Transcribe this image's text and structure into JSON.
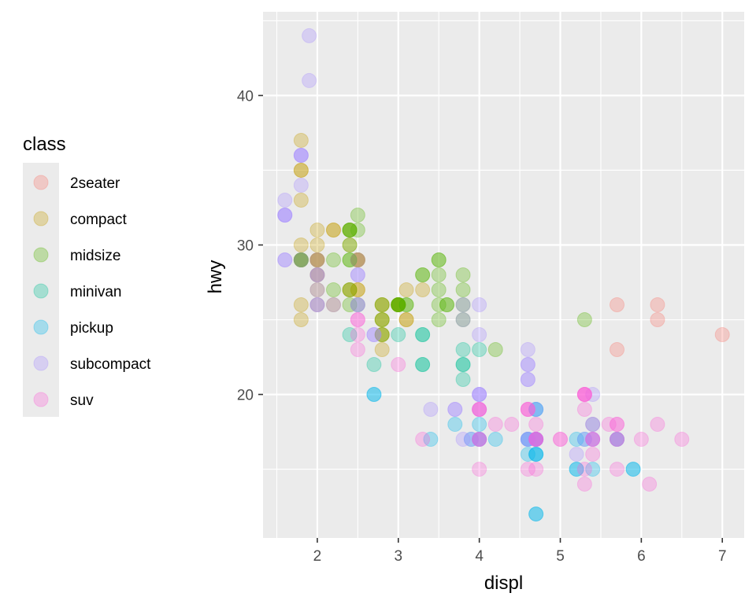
{
  "chart_data": {
    "type": "scatter",
    "xlabel": "displ",
    "ylabel": "hwy",
    "xlim": [
      1.33,
      7.27
    ],
    "ylim": [
      10.4,
      45.6
    ],
    "x_ticks": [
      2,
      3,
      4,
      5,
      6,
      7
    ],
    "y_ticks": [
      20,
      30,
      40
    ],
    "grid": true,
    "point_alpha": 0.3,
    "legend": {
      "title": "class",
      "position": "left"
    },
    "series": [
      {
        "name": "2seater",
        "color": "#F8766D",
        "points": [
          [
            5.7,
            26
          ],
          [
            5.7,
            23
          ],
          [
            6.2,
            26
          ],
          [
            6.2,
            25
          ],
          [
            7.0,
            24
          ]
        ]
      },
      {
        "name": "compact",
        "color": "#C49A00",
        "points": [
          [
            1.8,
            29
          ],
          [
            1.8,
            29
          ],
          [
            2.0,
            31
          ],
          [
            2.0,
            30
          ],
          [
            2.8,
            26
          ],
          [
            2.8,
            26
          ],
          [
            3.1,
            27
          ],
          [
            1.8,
            26
          ],
          [
            1.8,
            25
          ],
          [
            2.0,
            28
          ],
          [
            2.0,
            27
          ],
          [
            2.8,
            25
          ],
          [
            2.8,
            25
          ],
          [
            3.1,
            25
          ],
          [
            3.1,
            25
          ],
          [
            2.2,
            26
          ],
          [
            2.4,
            27
          ],
          [
            2.4,
            30
          ],
          [
            3.0,
            26
          ],
          [
            3.3,
            27
          ],
          [
            1.8,
            33
          ],
          [
            1.8,
            35
          ],
          [
            1.8,
            37
          ],
          [
            1.8,
            35
          ],
          [
            2.0,
            29
          ],
          [
            2.0,
            26
          ],
          [
            2.0,
            29
          ],
          [
            2.0,
            29
          ],
          [
            2.8,
            24
          ],
          [
            2.5,
            29
          ],
          [
            2.5,
            29
          ],
          [
            2.5,
            29
          ],
          [
            2.5,
            29
          ],
          [
            2.5,
            27
          ],
          [
            2.5,
            27
          ],
          [
            2.2,
            31
          ],
          [
            2.2,
            31
          ],
          [
            2.4,
            31
          ],
          [
            2.4,
            27
          ],
          [
            3.0,
            26
          ],
          [
            3.0,
            26
          ],
          [
            3.0,
            26
          ],
          [
            2.0,
            28
          ],
          [
            2.0,
            29
          ],
          [
            2.8,
            23
          ],
          [
            1.8,
            30
          ],
          [
            2.8,
            24
          ]
        ]
      },
      {
        "name": "midsize",
        "color": "#53B400",
        "points": [
          [
            1.8,
            29
          ],
          [
            1.8,
            29
          ],
          [
            2.4,
            26
          ],
          [
            3.1,
            26
          ],
          [
            2.4,
            29
          ],
          [
            2.4,
            31
          ],
          [
            2.5,
            32
          ],
          [
            2.5,
            31
          ],
          [
            3.3,
            28
          ],
          [
            3.3,
            28
          ],
          [
            2.8,
            26
          ],
          [
            3.5,
            28
          ],
          [
            3.5,
            26
          ],
          [
            3.8,
            26
          ],
          [
            3.8,
            25
          ],
          [
            3.8,
            27
          ],
          [
            3.8,
            28
          ],
          [
            3.6,
            26
          ],
          [
            3.5,
            29
          ],
          [
            3.5,
            27
          ],
          [
            3.6,
            26
          ],
          [
            3.0,
            26
          ],
          [
            2.4,
            30
          ],
          [
            2.4,
            31
          ],
          [
            2.4,
            29
          ],
          [
            2.4,
            27
          ],
          [
            2.2,
            27
          ],
          [
            2.5,
            26
          ],
          [
            3.0,
            26
          ],
          [
            3.0,
            26
          ],
          [
            3.5,
            29
          ],
          [
            3.5,
            25
          ],
          [
            3.0,
            26
          ],
          [
            2.4,
            31
          ],
          [
            5.3,
            25
          ],
          [
            2.8,
            24
          ],
          [
            2.2,
            29
          ],
          [
            2.8,
            25
          ],
          [
            1.8,
            29
          ],
          [
            3.1,
            26
          ],
          [
            4.2,
            23
          ]
        ]
      },
      {
        "name": "minivan",
        "color": "#00C094",
        "points": [
          [
            3.8,
            22
          ],
          [
            3.8,
            22
          ],
          [
            3.3,
            22
          ],
          [
            3.3,
            22
          ],
          [
            3.8,
            21
          ],
          [
            3.3,
            24
          ],
          [
            3.3,
            24
          ],
          [
            3.8,
            23
          ],
          [
            3.0,
            24
          ],
          [
            2.4,
            24
          ],
          [
            4.0,
            23
          ],
          [
            2.7,
            22
          ]
        ]
      },
      {
        "name": "pickup",
        "color": "#00B6EB",
        "points": [
          [
            2.7,
            20
          ],
          [
            2.7,
            20
          ],
          [
            3.7,
            18
          ],
          [
            3.9,
            17
          ],
          [
            4.7,
            16
          ],
          [
            4.7,
            16
          ],
          [
            5.2,
            15
          ],
          [
            5.2,
            15
          ],
          [
            5.7,
            17
          ],
          [
            5.9,
            15
          ],
          [
            4.2,
            17
          ],
          [
            4.6,
            17
          ],
          [
            5.4,
            15
          ],
          [
            4.7,
            17
          ],
          [
            4.6,
            16
          ],
          [
            4.7,
            16
          ],
          [
            5.4,
            18
          ],
          [
            5.3,
            17
          ],
          [
            4.0,
            18
          ],
          [
            4.7,
            19
          ],
          [
            4.0,
            17
          ],
          [
            4.0,
            17
          ],
          [
            4.6,
            17
          ],
          [
            5.4,
            17
          ],
          [
            5.7,
            17
          ],
          [
            5.9,
            15
          ],
          [
            4.7,
            19
          ],
          [
            4.7,
            12
          ],
          [
            4.7,
            12
          ],
          [
            4.7,
            17
          ],
          [
            3.4,
            17
          ],
          [
            5.2,
            17
          ],
          [
            4.7,
            17
          ]
        ]
      },
      {
        "name": "subcompact",
        "color": "#A58AFF",
        "points": [
          [
            3.8,
            26
          ],
          [
            3.8,
            25
          ],
          [
            4.0,
            26
          ],
          [
            4.0,
            24
          ],
          [
            4.6,
            21
          ],
          [
            4.6,
            22
          ],
          [
            4.6,
            23
          ],
          [
            5.4,
            20
          ],
          [
            1.8,
            36
          ],
          [
            1.8,
            36
          ],
          [
            1.6,
            33
          ],
          [
            1.6,
            32
          ],
          [
            1.6,
            32
          ],
          [
            1.6,
            29
          ],
          [
            1.6,
            32
          ],
          [
            1.8,
            34
          ],
          [
            1.8,
            36
          ],
          [
            1.9,
            44
          ],
          [
            1.9,
            41
          ],
          [
            2.0,
            29
          ],
          [
            2.0,
            26
          ],
          [
            2.5,
            28
          ],
          [
            2.5,
            26
          ],
          [
            2.5,
            26
          ],
          [
            2.5,
            29
          ],
          [
            2.0,
            28
          ],
          [
            2.2,
            26
          ],
          [
            2.0,
            27
          ],
          [
            2.0,
            26
          ],
          [
            3.8,
            17
          ],
          [
            4.6,
            21
          ],
          [
            3.7,
            19
          ],
          [
            4.0,
            20
          ],
          [
            4.0,
            19
          ],
          [
            3.4,
            19
          ],
          [
            4.6,
            17
          ],
          [
            4.7,
            19
          ],
          [
            4.6,
            22
          ],
          [
            4.6,
            17
          ],
          [
            3.7,
            19
          ],
          [
            4.0,
            20
          ],
          [
            2.7,
            24
          ],
          [
            1.6,
            29
          ],
          [
            4.7,
            17
          ],
          [
            5.2,
            16
          ],
          [
            1.8,
            29
          ],
          [
            2.5,
            28
          ],
          [
            2.0,
            28
          ],
          [
            3.9,
            17
          ],
          [
            4.0,
            17
          ],
          [
            4.0,
            20
          ],
          [
            2.7,
            24
          ],
          [
            4.7,
            17
          ],
          [
            5.3,
            17
          ],
          [
            5.4,
            17
          ]
        ]
      },
      {
        "name": "suv",
        "color": "#FB61D7",
        "points": [
          [
            5.3,
            20
          ],
          [
            5.3,
            15
          ],
          [
            5.3,
            20
          ],
          [
            5.7,
            17
          ],
          [
            6.0,
            17
          ],
          [
            5.7,
            15
          ],
          [
            5.7,
            18
          ],
          [
            6.2,
            18
          ],
          [
            6.5,
            17
          ],
          [
            4.0,
            19
          ],
          [
            4.7,
            18
          ],
          [
            4.7,
            17
          ],
          [
            4.6,
            19
          ],
          [
            5.3,
            19
          ],
          [
            5.3,
            20
          ],
          [
            5.6,
            18
          ],
          [
            4.0,
            17
          ],
          [
            4.0,
            15
          ],
          [
            4.6,
            19
          ],
          [
            5.0,
            17
          ],
          [
            4.2,
            18
          ],
          [
            4.4,
            18
          ],
          [
            4.6,
            19
          ],
          [
            5.4,
            18
          ],
          [
            5.4,
            16
          ],
          [
            5.4,
            17
          ],
          [
            4.0,
            19
          ],
          [
            4.0,
            19
          ],
          [
            4.7,
            15
          ],
          [
            4.7,
            17
          ],
          [
            5.7,
            17
          ],
          [
            6.1,
            14
          ],
          [
            5.3,
            14
          ],
          [
            5.4,
            17
          ],
          [
            5.7,
            18
          ],
          [
            2.5,
            25
          ],
          [
            2.5,
            24
          ],
          [
            2.5,
            23
          ],
          [
            2.5,
            25
          ],
          [
            3.0,
            22
          ],
          [
            3.3,
            17
          ],
          [
            4.0,
            17
          ],
          [
            4.7,
            17
          ],
          [
            5.0,
            17
          ],
          [
            4.6,
            15
          ],
          [
            5.3,
            20
          ]
        ]
      }
    ]
  }
}
